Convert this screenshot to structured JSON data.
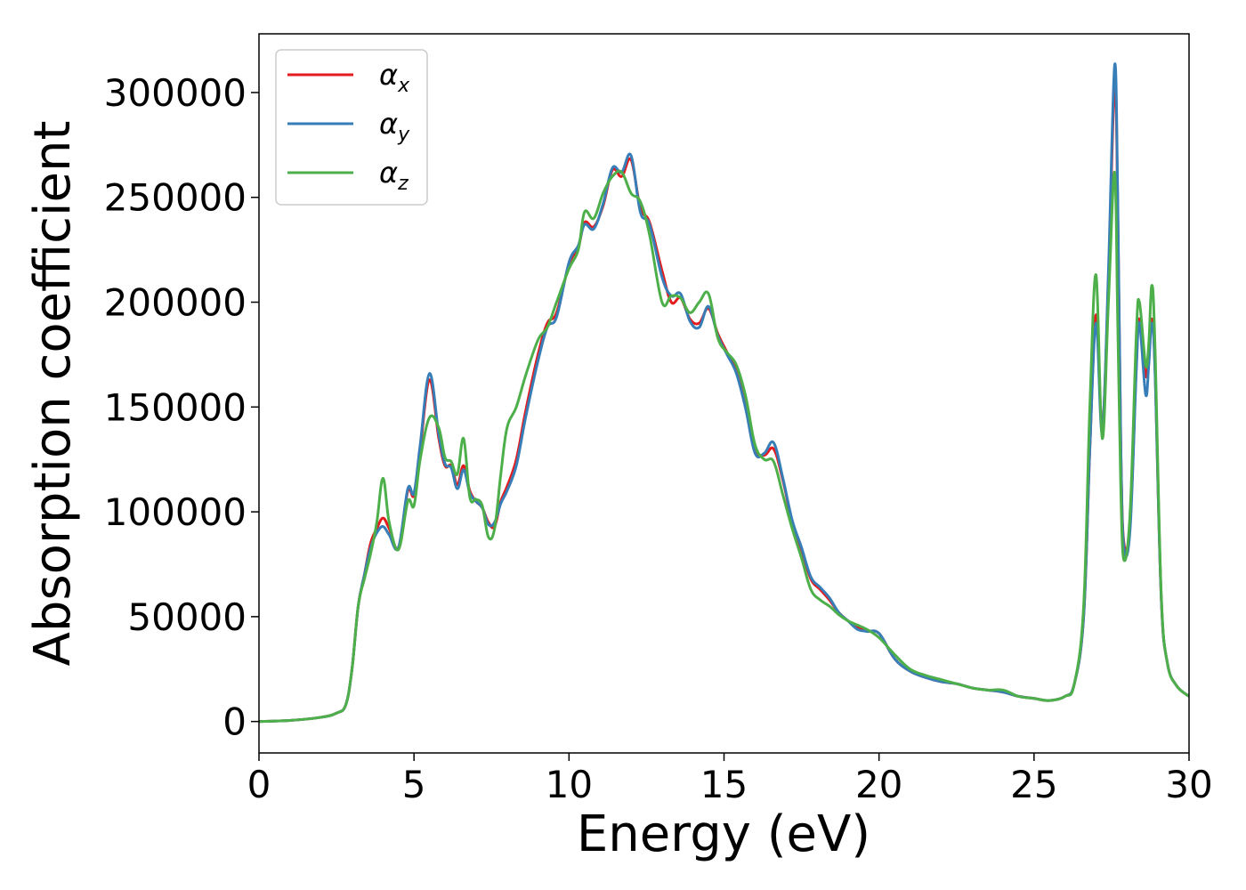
{
  "chart_data": {
    "type": "line",
    "xlabel": "Energy (eV)",
    "ylabel": "Absorption coefficient",
    "xlim": [
      0,
      30
    ],
    "ylim": [
      -15000,
      328000
    ],
    "xticks": [
      0,
      5,
      10,
      15,
      20,
      25,
      30
    ],
    "yticks": [
      0,
      50000,
      100000,
      150000,
      200000,
      250000,
      300000
    ],
    "xtick_labels": [
      "0",
      "5",
      "10",
      "15",
      "20",
      "25",
      "30"
    ],
    "ytick_labels": [
      "0",
      "50000",
      "100000",
      "150000",
      "200000",
      "250000",
      "300000"
    ],
    "grid": false,
    "legend_position": "top-left",
    "series": [
      {
        "name": "αx",
        "symbol": "α",
        "subscript": "x",
        "color": "#e41a1c",
        "x": [
          0,
          1,
          2,
          2.5,
          2.8,
          3.0,
          3.2,
          3.4,
          3.6,
          3.8,
          4.0,
          4.2,
          4.5,
          4.8,
          5.0,
          5.2,
          5.5,
          5.8,
          6.0,
          6.2,
          6.4,
          6.6,
          6.8,
          7.0,
          7.2,
          7.4,
          7.6,
          7.8,
          8.0,
          8.3,
          8.6,
          9.0,
          9.3,
          9.6,
          10.0,
          10.3,
          10.5,
          10.8,
          11.1,
          11.4,
          11.7,
          12.0,
          12.3,
          12.6,
          13.0,
          13.3,
          13.6,
          13.9,
          14.2,
          14.5,
          14.8,
          15.1,
          15.4,
          15.7,
          16.0,
          16.3,
          16.6,
          16.9,
          17.2,
          17.5,
          17.8,
          18.1,
          18.4,
          18.7,
          19.0,
          19.3,
          19.6,
          20.0,
          20.5,
          21.0,
          21.5,
          22.0,
          22.5,
          23.0,
          23.5,
          24.0,
          24.5,
          25.0,
          25.5,
          26.0,
          26.3,
          26.6,
          26.8,
          27.0,
          27.2,
          27.4,
          27.6,
          27.7,
          27.8,
          27.9,
          28.1,
          28.3,
          28.4,
          28.6,
          28.7,
          28.8,
          28.9,
          29.1,
          29.3,
          29.6,
          30.0
        ],
        "y": [
          0,
          500,
          2000,
          4000,
          8000,
          25000,
          55000,
          70000,
          85000,
          92000,
          97000,
          92000,
          83000,
          110000,
          108000,
          130000,
          163000,
          135000,
          122000,
          122000,
          113000,
          122000,
          110000,
          105000,
          102000,
          95000,
          93000,
          105000,
          112000,
          125000,
          148000,
          175000,
          190000,
          195000,
          218000,
          226000,
          238000,
          236000,
          246000,
          263000,
          260000,
          268000,
          245000,
          238000,
          215000,
          200000,
          202000,
          192000,
          190000,
          197000,
          185000,
          176000,
          167000,
          150000,
          130000,
          127000,
          130000,
          115000,
          95000,
          82000,
          68000,
          63000,
          58000,
          52000,
          48000,
          45000,
          43000,
          42000,
          30000,
          24000,
          21000,
          19000,
          18000,
          16000,
          15000,
          14000,
          12000,
          11000,
          10000,
          12000,
          18000,
          50000,
          130000,
          194000,
          140000,
          210000,
          305000,
          245000,
          130000,
          85000,
          95000,
          170000,
          192000,
          165000,
          175000,
          192000,
          170000,
          60000,
          28000,
          17000,
          12000
        ]
      },
      {
        "name": "αy",
        "symbol": "α",
        "subscript": "y",
        "color": "#377eb8",
        "x": [
          0,
          1,
          2,
          2.5,
          2.8,
          3.0,
          3.2,
          3.4,
          3.6,
          3.8,
          4.0,
          4.2,
          4.5,
          4.8,
          5.0,
          5.2,
          5.5,
          5.8,
          6.0,
          6.2,
          6.4,
          6.6,
          6.8,
          7.0,
          7.2,
          7.4,
          7.6,
          7.8,
          8.0,
          8.3,
          8.6,
          9.0,
          9.3,
          9.6,
          10.0,
          10.3,
          10.5,
          10.8,
          11.1,
          11.4,
          11.7,
          12.0,
          12.3,
          12.6,
          13.0,
          13.3,
          13.6,
          13.9,
          14.2,
          14.5,
          14.8,
          15.1,
          15.4,
          15.7,
          16.0,
          16.3,
          16.6,
          16.9,
          17.2,
          17.5,
          17.8,
          18.1,
          18.4,
          18.7,
          19.0,
          19.3,
          19.6,
          20.0,
          20.5,
          21.0,
          21.5,
          22.0,
          22.5,
          23.0,
          23.5,
          24.0,
          24.5,
          25.0,
          25.5,
          26.0,
          26.3,
          26.6,
          26.8,
          27.0,
          27.2,
          27.4,
          27.6,
          27.7,
          27.8,
          27.9,
          28.1,
          28.3,
          28.4,
          28.6,
          28.7,
          28.8,
          28.9,
          29.1,
          29.3,
          29.6,
          30.0
        ],
        "y": [
          0,
          500,
          2000,
          4000,
          8000,
          25000,
          55000,
          70000,
          83000,
          90000,
          93000,
          89000,
          83000,
          111000,
          109000,
          132000,
          166000,
          137000,
          123000,
          121000,
          111000,
          120000,
          109000,
          105000,
          102000,
          94000,
          95000,
          104000,
          110000,
          122000,
          145000,
          172000,
          188000,
          193000,
          219000,
          227000,
          237000,
          235000,
          247000,
          264000,
          262000,
          270000,
          243000,
          237000,
          212000,
          203000,
          204000,
          191000,
          188000,
          198000,
          184000,
          175000,
          166000,
          149000,
          128000,
          128000,
          133000,
          116000,
          96000,
          83000,
          69000,
          64000,
          59000,
          52000,
          48000,
          44000,
          43000,
          42000,
          30000,
          24000,
          21000,
          19000,
          18000,
          16000,
          15000,
          14000,
          12000,
          11000,
          10000,
          12000,
          18000,
          50000,
          130000,
          190000,
          138000,
          215000,
          313000,
          250000,
          130000,
          83000,
          92000,
          168000,
          190000,
          156000,
          170000,
          190000,
          168000,
          60000,
          28000,
          17000,
          12000
        ]
      },
      {
        "name": "αz",
        "symbol": "α",
        "subscript": "z",
        "color": "#4daf4a",
        "x": [
          0,
          1,
          2,
          2.5,
          2.8,
          3.0,
          3.2,
          3.4,
          3.6,
          3.8,
          4.0,
          4.2,
          4.5,
          4.8,
          5.0,
          5.2,
          5.5,
          5.8,
          6.0,
          6.2,
          6.4,
          6.6,
          6.8,
          7.0,
          7.2,
          7.4,
          7.6,
          7.8,
          8.0,
          8.3,
          8.6,
          9.0,
          9.3,
          9.6,
          10.0,
          10.3,
          10.5,
          10.8,
          11.1,
          11.4,
          11.7,
          12.0,
          12.3,
          12.6,
          13.0,
          13.3,
          13.6,
          13.9,
          14.2,
          14.5,
          14.8,
          15.1,
          15.4,
          15.7,
          16.0,
          16.3,
          16.6,
          16.9,
          17.2,
          17.5,
          17.8,
          18.1,
          18.4,
          18.7,
          19.0,
          19.3,
          19.6,
          20.0,
          20.5,
          21.0,
          21.5,
          22.0,
          22.5,
          23.0,
          23.5,
          24.0,
          24.5,
          25.0,
          25.5,
          26.0,
          26.3,
          26.6,
          26.8,
          27.0,
          27.2,
          27.4,
          27.6,
          27.7,
          27.8,
          27.9,
          28.1,
          28.3,
          28.4,
          28.6,
          28.7,
          28.8,
          28.9,
          29.1,
          29.3,
          29.6,
          30.0
        ],
        "y": [
          0,
          500,
          2000,
          4000,
          8000,
          25000,
          55000,
          68000,
          80000,
          95000,
          116000,
          95000,
          82000,
          105000,
          103000,
          125000,
          145000,
          140000,
          126000,
          124000,
          118000,
          135000,
          107000,
          106000,
          103000,
          88000,
          92000,
          118000,
          140000,
          150000,
          165000,
          182000,
          188000,
          200000,
          216000,
          225000,
          243000,
          240000,
          252000,
          260000,
          262000,
          252000,
          248000,
          232000,
          200000,
          203000,
          202000,
          195000,
          200000,
          204000,
          183000,
          176000,
          170000,
          155000,
          132000,
          125000,
          124000,
          108000,
          92000,
          78000,
          63000,
          58000,
          55000,
          51000,
          48000,
          46000,
          44000,
          40000,
          32000,
          25000,
          22000,
          20000,
          18000,
          16000,
          15000,
          15000,
          12000,
          11000,
          10000,
          12000,
          18000,
          55000,
          150000,
          213000,
          135000,
          200000,
          262000,
          190000,
          110000,
          77000,
          100000,
          185000,
          200000,
          170000,
          180000,
          208000,
          180000,
          62000,
          28000,
          17000,
          12000
        ]
      }
    ]
  }
}
